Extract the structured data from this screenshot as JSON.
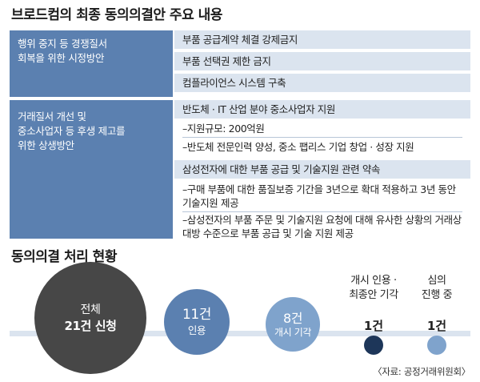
{
  "title": "브로드컴의 최종 동의의결안 주요 내용",
  "section1": {
    "label_lines": [
      "행위 중지 등 경쟁질서",
      "회복을 위한 시정방안"
    ],
    "items": [
      "부품 공급계약 체결 강제금지",
      "부품 선택권 제한 금지",
      "컴플라이언스 시스템 구축"
    ]
  },
  "section2": {
    "label_lines": [
      "거래질서 개선 및",
      "중소사업자 등 후생 제고를",
      "위한 상생방안"
    ],
    "item1_header": "반도체 · IT 산업 분야 중소사업자 지원",
    "item1_lines": [
      "–지원규모: 200억원",
      "–반도체 전문인력 양성, 중소 팹리스 기업 창업 · 성장 지원"
    ],
    "item2_header": "삼성전자에 대한 부품 공급 및 기술지원 관련 약속",
    "item2_para1": "–구매 부품에 대한 품질보증 기간을 3년으로 확대 적용하고 3년 동안 기술지원 제공",
    "item2_para2": "–삼성전자의 부품 주문 및 기술지원 요청에 대해 유사한 상황의 거래상대방 수준으로 부품 공급 및 기술 지원 제공"
  },
  "status": {
    "title": "동의의결 처리 현황",
    "total_label": "전체",
    "total_value": "21건 신청",
    "accepted_count": "11건",
    "accepted_label": "인용",
    "dismissed_count": "8건",
    "dismissed_label": "개시 기각",
    "final_rejected_label_lines": [
      "개시 인용 ·",
      "최종안 기각"
    ],
    "final_rejected_count": "1건",
    "pending_label_lines": [
      "심의",
      "진행 중"
    ],
    "pending_count": "1건"
  },
  "source": "〈자료: 공정거래위원회〉",
  "colors": {
    "label_box": "#5b80b0",
    "bar": "#dbe4ef",
    "total_circle": "#474747",
    "accepted_circle": "#5b80b0",
    "dismissed_circle": "#7fa3cc",
    "final_rejected_circle": "#1d3659",
    "pending_circle": "#7fa3cc"
  }
}
